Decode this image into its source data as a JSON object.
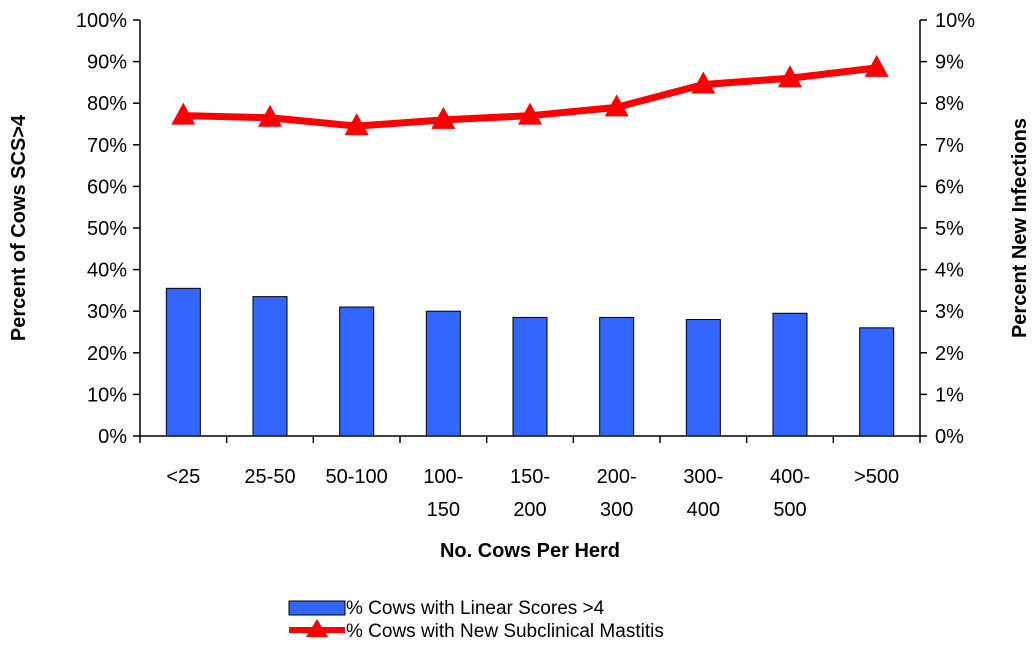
{
  "chart_data": {
    "type": "bar",
    "xlabel": "No. Cows Per Herd",
    "ylabel_left": "Percent of Cows SCS>4",
    "ylabel_right": "Percent New Infections",
    "categories": [
      [
        "<25"
      ],
      [
        "25-50"
      ],
      [
        "50-100"
      ],
      [
        "100-",
        "150"
      ],
      [
        "150-",
        "200"
      ],
      [
        "200-",
        "300"
      ],
      [
        "300-",
        "400"
      ],
      [
        "400-",
        "500"
      ],
      [
        ">500"
      ]
    ],
    "ylim_left": [
      0,
      100
    ],
    "ylim_right": [
      0,
      10
    ],
    "yticks_left": [
      "0%",
      "10%",
      "20%",
      "30%",
      "40%",
      "50%",
      "60%",
      "70%",
      "80%",
      "90%",
      "100%"
    ],
    "yticks_right": [
      "0%",
      "1%",
      "2%",
      "3%",
      "4%",
      "5%",
      "6%",
      "7%",
      "8%",
      "9%",
      "10%"
    ],
    "grid": false,
    "legend_position": "bottom",
    "series": [
      {
        "name": "% Cows with Linear Scores >4",
        "type": "bar",
        "axis": "left",
        "color": "#3366ff",
        "values": [
          35.5,
          33.5,
          31,
          30,
          28.5,
          28.5,
          28,
          29.5,
          26
        ]
      },
      {
        "name": "% Cows with New Subclinical Mastitis",
        "type": "line",
        "axis": "right",
        "marker": "triangle",
        "color": "#ff0000",
        "values": [
          7.7,
          7.65,
          7.45,
          7.6,
          7.7,
          7.9,
          8.45,
          8.6,
          8.85
        ]
      }
    ]
  }
}
